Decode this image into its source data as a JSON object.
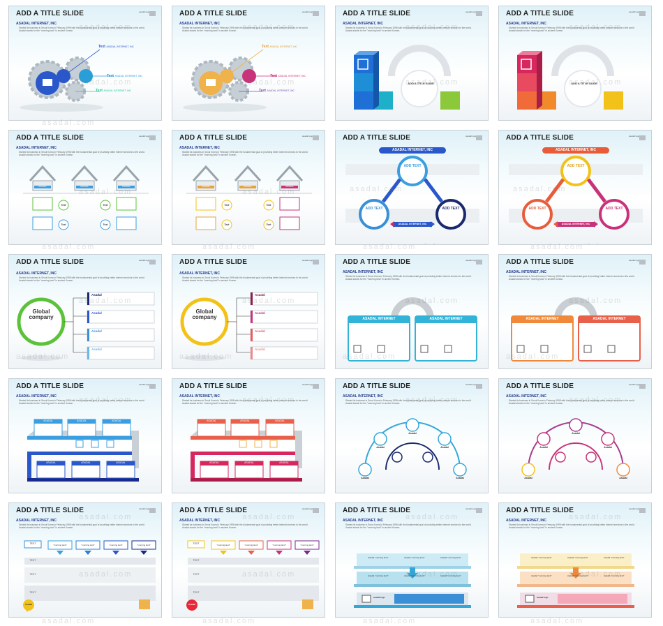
{
  "common": {
    "title": "ADD A TITLE SLIDE",
    "subtitle": "ASADAL INTERNET, INC",
    "description": "Started its business in Seoul Korea in February 1998 with the fundamental goal of providing better internet services to the world. Asadal stands for the \"morning land\" in ancient Korean.",
    "watermark": "asadal.com",
    "logo_text": "asadal logo"
  },
  "slides": [
    {
      "id": 1,
      "accent": "#2a57c9",
      "type": "gears",
      "labels": [
        "Text",
        "Text",
        "Text"
      ],
      "sub_labels": [
        "ASADAL INTERNET, INC",
        "ASADAL INTERNET, INC",
        "ASADAL INTERNET, INC"
      ]
    },
    {
      "id": 2,
      "accent": "#f0b24a",
      "type": "gears",
      "labels": [
        "Text",
        "Text",
        "Text"
      ],
      "sub_labels": [
        "ASADAL INTERNET, INC",
        "ASADAL INTERNET, INC",
        "ASADAL INTERNET, INC"
      ]
    },
    {
      "id": 3,
      "accent": "#1e8fd6",
      "type": "cubes",
      "labels": [
        "ADD A TITLE SLIDE"
      ]
    },
    {
      "id": 4,
      "accent": "#e84a5f",
      "type": "cubes",
      "labels": [
        "ADD A TITLE SLIDE"
      ]
    },
    {
      "id": 5,
      "accent": "#3a9ee0",
      "type": "houses",
      "labels": [
        "ASADAL",
        "ASADAL",
        "ASADAL",
        "Text",
        "Text",
        "Text",
        "Text"
      ]
    },
    {
      "id": 6,
      "accent": "#e8a33a",
      "type": "houses",
      "labels": [
        "ASADAL",
        "ASADAL",
        "ASADAL",
        "Text",
        "Text",
        "Text",
        "Text"
      ]
    },
    {
      "id": 7,
      "accent": "#2a57c9",
      "type": "cycle",
      "labels": [
        "ASADAL INTERNET, INC",
        "ADD TEXT",
        "ADD TEXT",
        "ADD TEXT",
        "ASADAL INTERNET, INC"
      ]
    },
    {
      "id": 8,
      "accent": "#e85c3a",
      "type": "cycle",
      "labels": [
        "ASADAL INTERNET, INC",
        "ADD TEXT",
        "ADD TEXT",
        "ADD TEXT",
        "ASADAL INTERNET, INC"
      ]
    },
    {
      "id": 9,
      "accent": "#5bc23a",
      "type": "company",
      "labels": [
        "Global",
        "company",
        "Asadal",
        "Asadal",
        "Asadal",
        "Asadal"
      ]
    },
    {
      "id": 10,
      "accent": "#f2c21a",
      "type": "company",
      "labels": [
        "Global",
        "company",
        "Asadal",
        "Asadal",
        "Asadal",
        "Asadal"
      ]
    },
    {
      "id": 11,
      "accent": "#33b3d8",
      "type": "magnet",
      "labels": [
        "ASADAL INTERNET",
        "ASADAL INTERNET"
      ]
    },
    {
      "id": 12,
      "accent": "#f08a3a",
      "type": "magnet",
      "labels": [
        "ASADAL INTERNET",
        "ASADAL INTERNET"
      ]
    },
    {
      "id": 13,
      "accent": "#2a7fd6",
      "type": "shelf",
      "labels": [
        "ASADAL",
        "ASADAL",
        "ASADAL",
        "ASADAL",
        "ASADAL",
        "ASADAL"
      ]
    },
    {
      "id": 14,
      "accent": "#e8604a",
      "type": "shelf",
      "labels": [
        "ASADAL",
        "ASADAL",
        "ASADAL",
        "ASADAL",
        "ASADAL",
        "ASADAL"
      ]
    },
    {
      "id": 15,
      "accent": "#33a7d8",
      "type": "arcs",
      "labels": [
        "Asadal",
        "Asadal",
        "Asadal",
        "Asadal",
        "Asadal"
      ]
    },
    {
      "id": 16,
      "accent": "#a63a8c",
      "type": "arcs",
      "labels": [
        "Asadal",
        "Asadal",
        "Asadal",
        "Asadal",
        "Asadal"
      ]
    },
    {
      "id": 17,
      "accent": "#3a8fd6",
      "type": "table",
      "labels": [
        "TEXT",
        "TEXT",
        "TEXT",
        "TEXT",
        "Asadal"
      ],
      "col_labels": [
        "\"morning land\"",
        "\"morning land\"",
        "\"morning land\"",
        "\"morning land\""
      ]
    },
    {
      "id": 18,
      "accent": "#e8a33a",
      "type": "table",
      "labels": [
        "TEXT",
        "TEXT",
        "TEXT",
        "TEXT",
        "Asadal"
      ],
      "col_labels": [
        "\"morning land\"",
        "\"morning land\"",
        "\"morning land\"",
        "\"morning land\""
      ]
    },
    {
      "id": 19,
      "accent": "#33a7d8",
      "type": "steps",
      "labels": [
        "Asadal \"morning land\"",
        "Asadal \"morning land\"",
        "Asadal \"morning land\"",
        "Asadal \"morning land\"",
        "Asadal \"morning land\"",
        "Asadal \"morning land\""
      ]
    },
    {
      "id": 20,
      "accent": "#f0a23a",
      "type": "steps",
      "labels": [
        "Asadal \"morning land\"",
        "Asadal \"morning land\"",
        "Asadal \"morning land\"",
        "Asadal \"morning land\"",
        "Asadal \"morning land\"",
        "Asadal \"morning land\""
      ]
    }
  ]
}
